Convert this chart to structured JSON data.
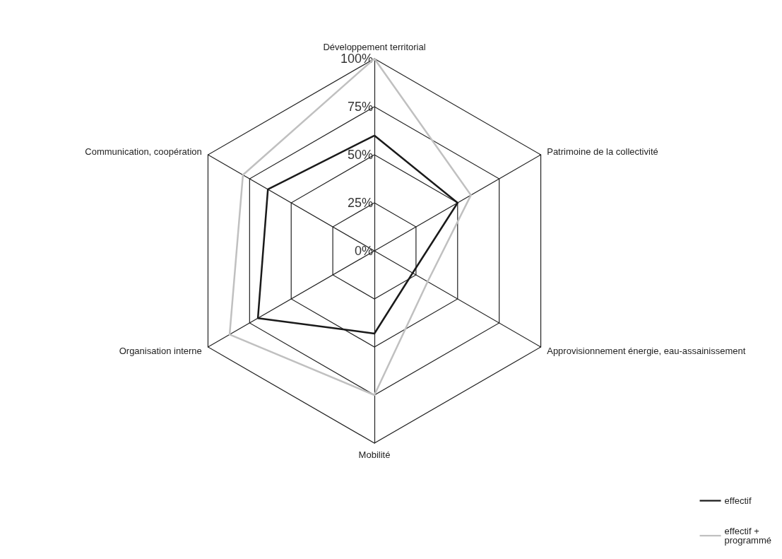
{
  "chart_data": {
    "type": "radar",
    "categories": [
      "Développement territorial",
      "Patrimoine de la collectivité",
      "Approvisionnement énergie, eau-assainissement",
      "Mobilité",
      "Organisation interne",
      "Communication, coopération"
    ],
    "series": [
      {
        "name": "effectif",
        "color": "#1a1a1a",
        "values": [
          60,
          50,
          23,
          43,
          70,
          64
        ]
      },
      {
        "name": "effectif + programmé",
        "color": "#c0c0c0",
        "values": [
          100,
          58,
          32,
          75,
          87,
          79
        ]
      }
    ],
    "ylim": [
      0,
      100
    ],
    "yticks": [
      {
        "value": 0,
        "label": "0%"
      },
      {
        "value": 25,
        "label": "25%"
      },
      {
        "value": 50,
        "label": "50%"
      },
      {
        "value": 75,
        "label": "75%"
      },
      {
        "value": 100,
        "label": "100%"
      }
    ],
    "grid": true,
    "legend": "bottom right",
    "marker": "none",
    "line_style": "solid"
  }
}
